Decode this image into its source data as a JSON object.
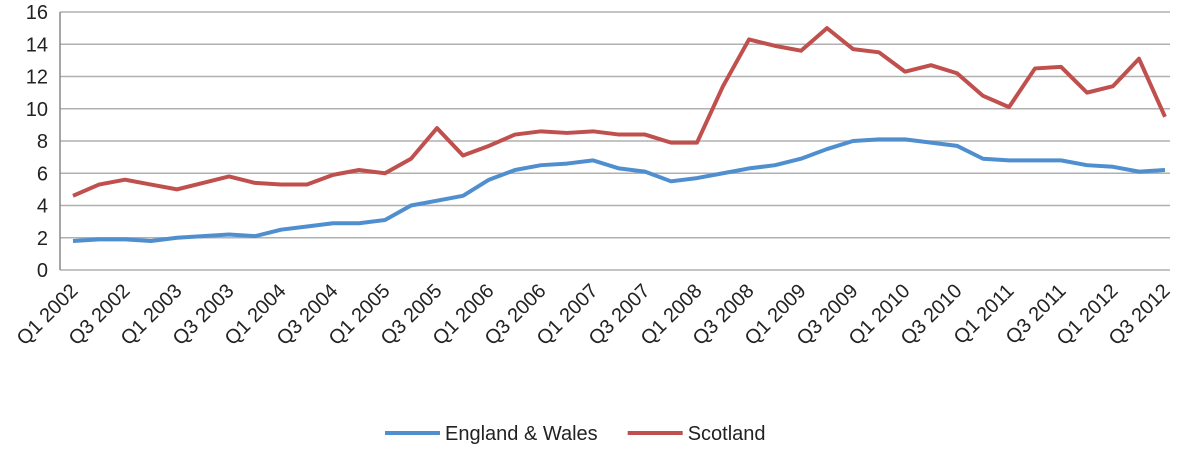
{
  "chart_data": {
    "type": "line",
    "categories": [
      "Q1 2002",
      null,
      "Q3 2002",
      null,
      "Q1 2003",
      null,
      "Q3 2003",
      null,
      "Q1 2004",
      null,
      "Q3 2004",
      null,
      "Q1 2005",
      null,
      "Q3 2005",
      null,
      "Q1 2006",
      null,
      "Q3 2006",
      null,
      "Q1 2007",
      null,
      "Q3 2007",
      null,
      "Q1 2008",
      null,
      "Q3 2008",
      null,
      "Q1 2009",
      null,
      "Q3 2009",
      null,
      "Q1 2010",
      null,
      "Q3 2010",
      null,
      "Q1 2011",
      null,
      "Q3 2011",
      null,
      "Q1 2012",
      null,
      "Q3 2012"
    ],
    "series": [
      {
        "name": "England & Wales",
        "color": "#4f8fcf",
        "values": [
          1.8,
          1.9,
          1.9,
          1.8,
          2.0,
          2.1,
          2.2,
          2.1,
          2.5,
          2.7,
          2.9,
          2.9,
          3.1,
          4.0,
          4.3,
          4.6,
          5.6,
          6.2,
          6.5,
          6.6,
          6.8,
          6.3,
          6.1,
          5.5,
          5.7,
          6.0,
          6.3,
          6.5,
          6.9,
          7.5,
          8.0,
          8.1,
          8.1,
          7.9,
          7.7,
          6.9,
          6.8,
          6.8,
          6.8,
          6.5,
          6.4,
          6.1,
          6.2
        ]
      },
      {
        "name": "Scotland",
        "color": "#c0504d",
        "values": [
          4.6,
          5.3,
          5.6,
          5.3,
          5.0,
          5.4,
          5.8,
          5.4,
          5.3,
          5.3,
          5.9,
          6.2,
          6.0,
          6.9,
          8.8,
          7.1,
          7.7,
          8.4,
          8.6,
          8.5,
          8.6,
          8.4,
          8.4,
          7.9,
          7.9,
          11.4,
          14.3,
          13.9,
          13.6,
          15.0,
          13.7,
          13.5,
          12.3,
          12.7,
          12.2,
          10.8,
          10.1,
          12.5,
          12.6,
          11.0,
          11.4,
          13.1,
          9.5
        ]
      }
    ],
    "ylim": [
      0,
      16
    ],
    "yticks": [
      0,
      2,
      4,
      6,
      8,
      10,
      12,
      14,
      16
    ],
    "grid": true,
    "legend": "bottom"
  }
}
